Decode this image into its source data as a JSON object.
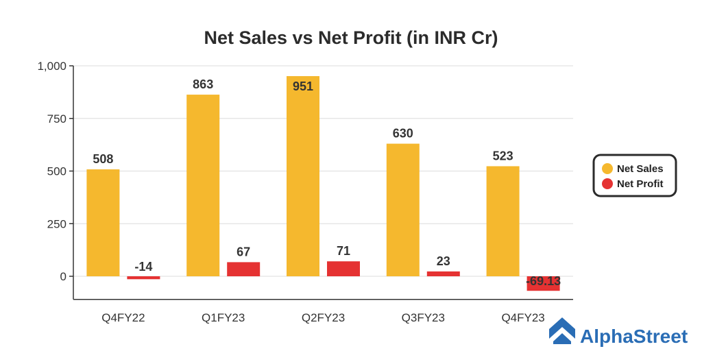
{
  "chart_data": {
    "type": "bar",
    "title": "Net Sales vs Net Profit (in INR Cr)",
    "xlabel": "",
    "ylabel": "",
    "categories": [
      "Q4FY22",
      "Q1FY23",
      "Q2FY23",
      "Q3FY23",
      "Q4FY23"
    ],
    "series": [
      {
        "name": "Net Sales",
        "color": "#f5b82e",
        "values": [
          508,
          863,
          951,
          630,
          523
        ],
        "labels": [
          "508",
          "863",
          "951",
          "630",
          "523"
        ]
      },
      {
        "name": "Net Profit",
        "color": "#e53232",
        "values": [
          -14,
          67,
          71,
          23,
          -69.13
        ],
        "labels": [
          "-14",
          "67",
          "71",
          "23",
          "-69.13"
        ]
      }
    ],
    "ylim": [
      -110,
      1000
    ],
    "yticks": [
      0,
      250,
      500,
      750,
      1000
    ],
    "ytick_labels": [
      "0",
      "250",
      "500",
      "750",
      "1,000"
    ],
    "grid": true,
    "legend_position": "right"
  },
  "brand": {
    "name": "AlphaStreet",
    "color": "#2a6db5"
  }
}
